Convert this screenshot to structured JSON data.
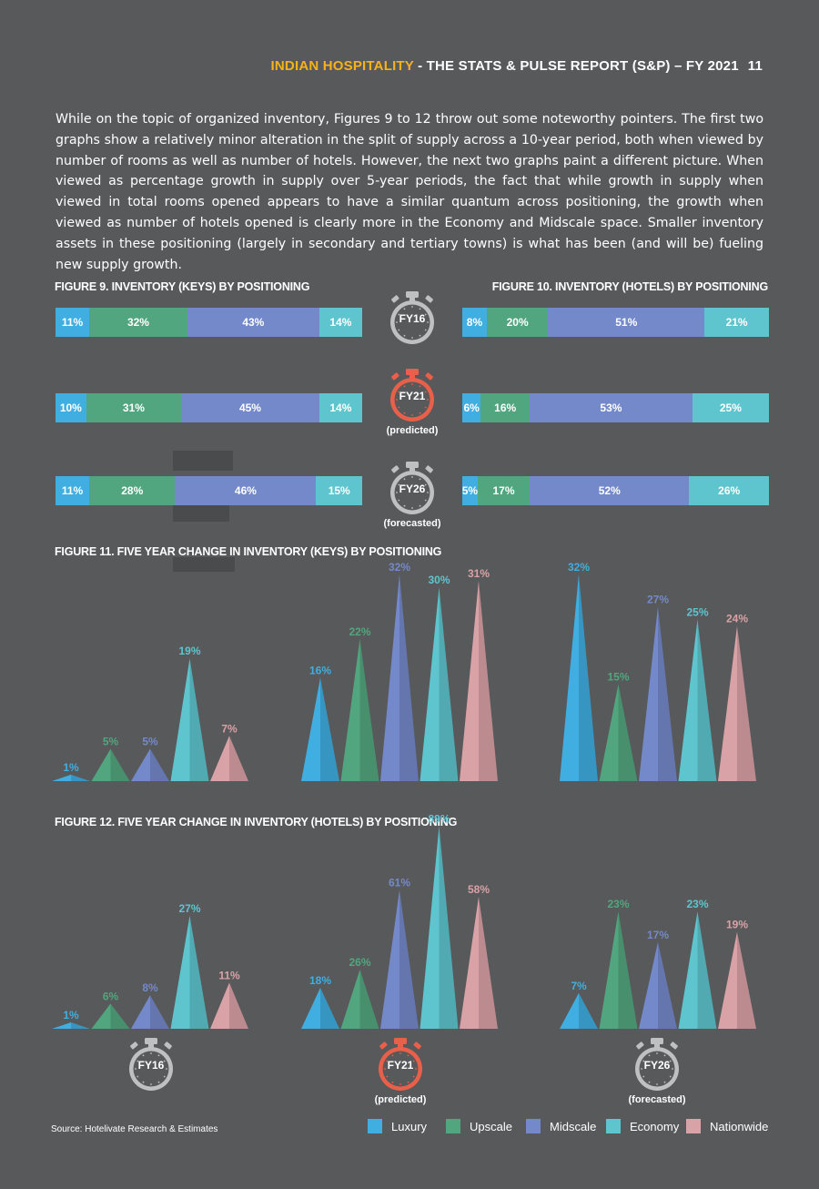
{
  "header": {
    "accent": "INDIAN HOSPITALITY",
    "rest": " - THE STATS & PULSE REPORT (S&P) – FY 2021",
    "page": "11"
  },
  "intro": "While on the topic of organized inventory, Figures 9 to 12 throw out some noteworthy pointers. The first two graphs show a relatively minor alteration in the split of supply across a 10-year period, both when viewed by number of rooms as well as number of hotels. However, the next two graphs paint a different picture. When viewed as percentage growth in supply over 5-year periods, the fact that while growth in supply when viewed in total rooms opened appears to have a similar quantum across positioning, the growth when viewed as number of hotels opened is clearly more in the Economy and Midscale space. Smaller inventory assets in these positioning (largely in secondary and tertiary towns) is what has been (and will be) fueling new supply growth.",
  "colors": {
    "Luxury": "#40aee0",
    "Upscale": "#52a67f",
    "Midscale": "#7489c9",
    "Economy": "#5ec5cf",
    "Nationwide": "#d9a2a6"
  },
  "periods": [
    {
      "label": "FY16",
      "sub": "",
      "timer_color": "#bfc0c2"
    },
    {
      "label": "FY21",
      "sub": "(predicted)",
      "timer_color": "#e9604a"
    },
    {
      "label": "FY26",
      "sub": "(forecasted)",
      "timer_color": "#bfc0c2"
    }
  ],
  "fig9": {
    "title": "FIGURE 9. INVENTORY (KEYS) BY POSITIONING",
    "rows": [
      {
        "period": "FY16",
        "values": [
          11,
          32,
          43,
          14
        ],
        "labels": [
          "11%",
          "32%",
          "43%",
          "14%"
        ]
      },
      {
        "period": "FY21",
        "values": [
          10,
          31,
          45,
          14
        ],
        "labels": [
          "10%",
          "31%",
          "45%",
          "14%"
        ]
      },
      {
        "period": "FY26",
        "values": [
          11,
          28,
          46,
          15
        ],
        "labels": [
          "11%",
          "28%",
          "46%",
          "15%"
        ]
      }
    ]
  },
  "fig10": {
    "title": "FIGURE 10. INVENTORY (HOTELS) BY POSITIONING",
    "rows": [
      {
        "period": "FY16",
        "values": [
          8,
          20,
          51,
          21
        ],
        "labels": [
          "8%",
          "20%",
          "51%",
          "21%"
        ]
      },
      {
        "period": "FY21",
        "values": [
          6,
          16,
          53,
          25
        ],
        "labels": [
          "6%",
          "16%",
          "53%",
          "25%"
        ]
      },
      {
        "period": "FY26",
        "values": [
          5,
          17,
          52,
          26
        ],
        "labels": [
          "5%",
          "17%",
          "52%",
          "26%"
        ]
      }
    ]
  },
  "fig11": {
    "title": "FIGURE 11. FIVE YEAR CHANGE IN INVENTORY (KEYS) BY POSITIONING"
  },
  "fig12": {
    "title": "FIGURE 12. FIVE YEAR CHANGE IN INVENTORY (HOTELS) BY POSITIONING"
  },
  "chart_data": [
    {
      "type": "bar",
      "title": "FIGURE 11. FIVE YEAR CHANGE IN INVENTORY (KEYS) BY POSITIONING",
      "categories": [
        "FY16",
        "FY21",
        "FY26"
      ],
      "series": [
        {
          "name": "Luxury",
          "values": [
            1,
            16,
            32
          ]
        },
        {
          "name": "Upscale",
          "values": [
            5,
            22,
            15
          ]
        },
        {
          "name": "Midscale",
          "values": [
            5,
            32,
            27
          ]
        },
        {
          "name": "Economy",
          "values": [
            19,
            30,
            25
          ]
        },
        {
          "name": "Nationwide",
          "values": [
            7,
            31,
            24
          ]
        }
      ]
    },
    {
      "type": "bar",
      "title": "FIGURE 12. FIVE YEAR CHANGE IN INVENTORY (HOTELS) BY POSITIONING",
      "categories": [
        "FY16",
        "FY21",
        "FY26"
      ],
      "series": [
        {
          "name": "Luxury",
          "values": [
            1,
            18,
            7
          ]
        },
        {
          "name": "Upscale",
          "values": [
            6,
            26,
            23
          ]
        },
        {
          "name": "Midscale",
          "values": [
            8,
            61,
            17
          ]
        },
        {
          "name": "Economy",
          "values": [
            27,
            89,
            23
          ]
        },
        {
          "name": "Nationwide",
          "values": [
            11,
            58,
            19
          ]
        }
      ]
    }
  ],
  "legend": [
    "Luxury",
    "Upscale",
    "Midscale",
    "Economy",
    "Nationwide"
  ],
  "source": "Source: Hotelivate Research & Estimates"
}
